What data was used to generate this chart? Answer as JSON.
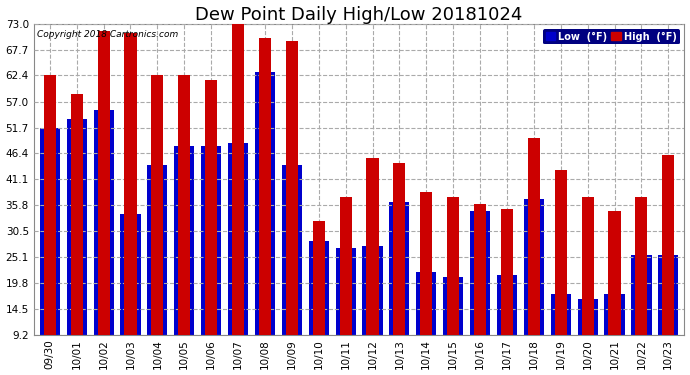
{
  "title": "Dew Point Daily High/Low 20181024",
  "copyright": "Copyright 2018 Cartronics.com",
  "categories": [
    "09/30",
    "10/01",
    "10/02",
    "10/03",
    "10/04",
    "10/05",
    "10/06",
    "10/07",
    "10/08",
    "10/09",
    "10/10",
    "10/11",
    "10/12",
    "10/13",
    "10/14",
    "10/15",
    "10/16",
    "10/17",
    "10/18",
    "10/19",
    "10/20",
    "10/21",
    "10/22",
    "10/23"
  ],
  "low_values": [
    51.7,
    53.5,
    55.2,
    34.0,
    44.0,
    48.0,
    48.0,
    48.5,
    63.0,
    44.0,
    28.5,
    27.0,
    27.5,
    36.5,
    22.0,
    21.0,
    34.5,
    21.5,
    37.0,
    17.5,
    16.5,
    17.5,
    25.5,
    25.5
  ],
  "high_values": [
    62.5,
    58.5,
    71.5,
    71.0,
    62.5,
    62.5,
    61.5,
    74.5,
    70.0,
    69.5,
    32.5,
    37.5,
    45.5,
    44.5,
    38.5,
    37.5,
    36.0,
    35.0,
    49.5,
    43.0,
    37.5,
    34.5,
    37.5,
    46.0
  ],
  "low_color": "#0000cc",
  "high_color": "#cc0000",
  "background_color": "#ffffff",
  "grid_color": "#aaaaaa",
  "ymin": 9.2,
  "ymax": 73.0,
  "yticks": [
    9.2,
    14.5,
    19.8,
    25.1,
    30.5,
    35.8,
    41.1,
    46.4,
    51.7,
    57.0,
    62.4,
    67.7,
    73.0
  ],
  "title_fontsize": 13,
  "tick_fontsize": 7.5,
  "legend_low_label": "Low  (°F)",
  "legend_high_label": "High  (°F)"
}
